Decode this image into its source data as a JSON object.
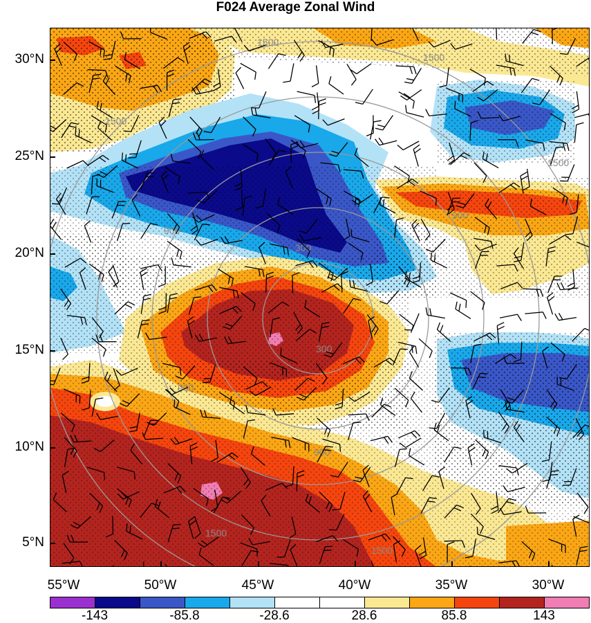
{
  "title": "F024 Average Zonal Wind",
  "lat_labels": [
    "30°N",
    "25°N",
    "20°N",
    "15°N",
    "10°N",
    "5°N"
  ],
  "lon_labels": [
    "55°W",
    "50°W",
    "45°W",
    "40°W",
    "35°W",
    "30°W"
  ],
  "range_ring_labels": [
    "300",
    "300",
    "900",
    "900",
    "900",
    "900",
    "1500",
    "1500",
    "1500",
    "1500",
    "1500",
    "1500"
  ],
  "colorbar": {
    "colors": [
      "#9b30d0",
      "#0a0a8a",
      "#3a57c8",
      "#19a8ea",
      "#b3e2f7",
      "#ffffff",
      "#ffffff",
      "#fbe893",
      "#faa615",
      "#f5450e",
      "#b3241f",
      "#f07db3"
    ],
    "labels": [
      "-143",
      "-85.8",
      "-28.6",
      "28.6",
      "85.8",
      "143"
    ]
  },
  "legend": {
    "items": [
      {
        "label": "-143",
        "color": "#0a0a8a"
      },
      {
        "label": "143",
        "color": "#b3241f"
      }
    ]
  }
}
